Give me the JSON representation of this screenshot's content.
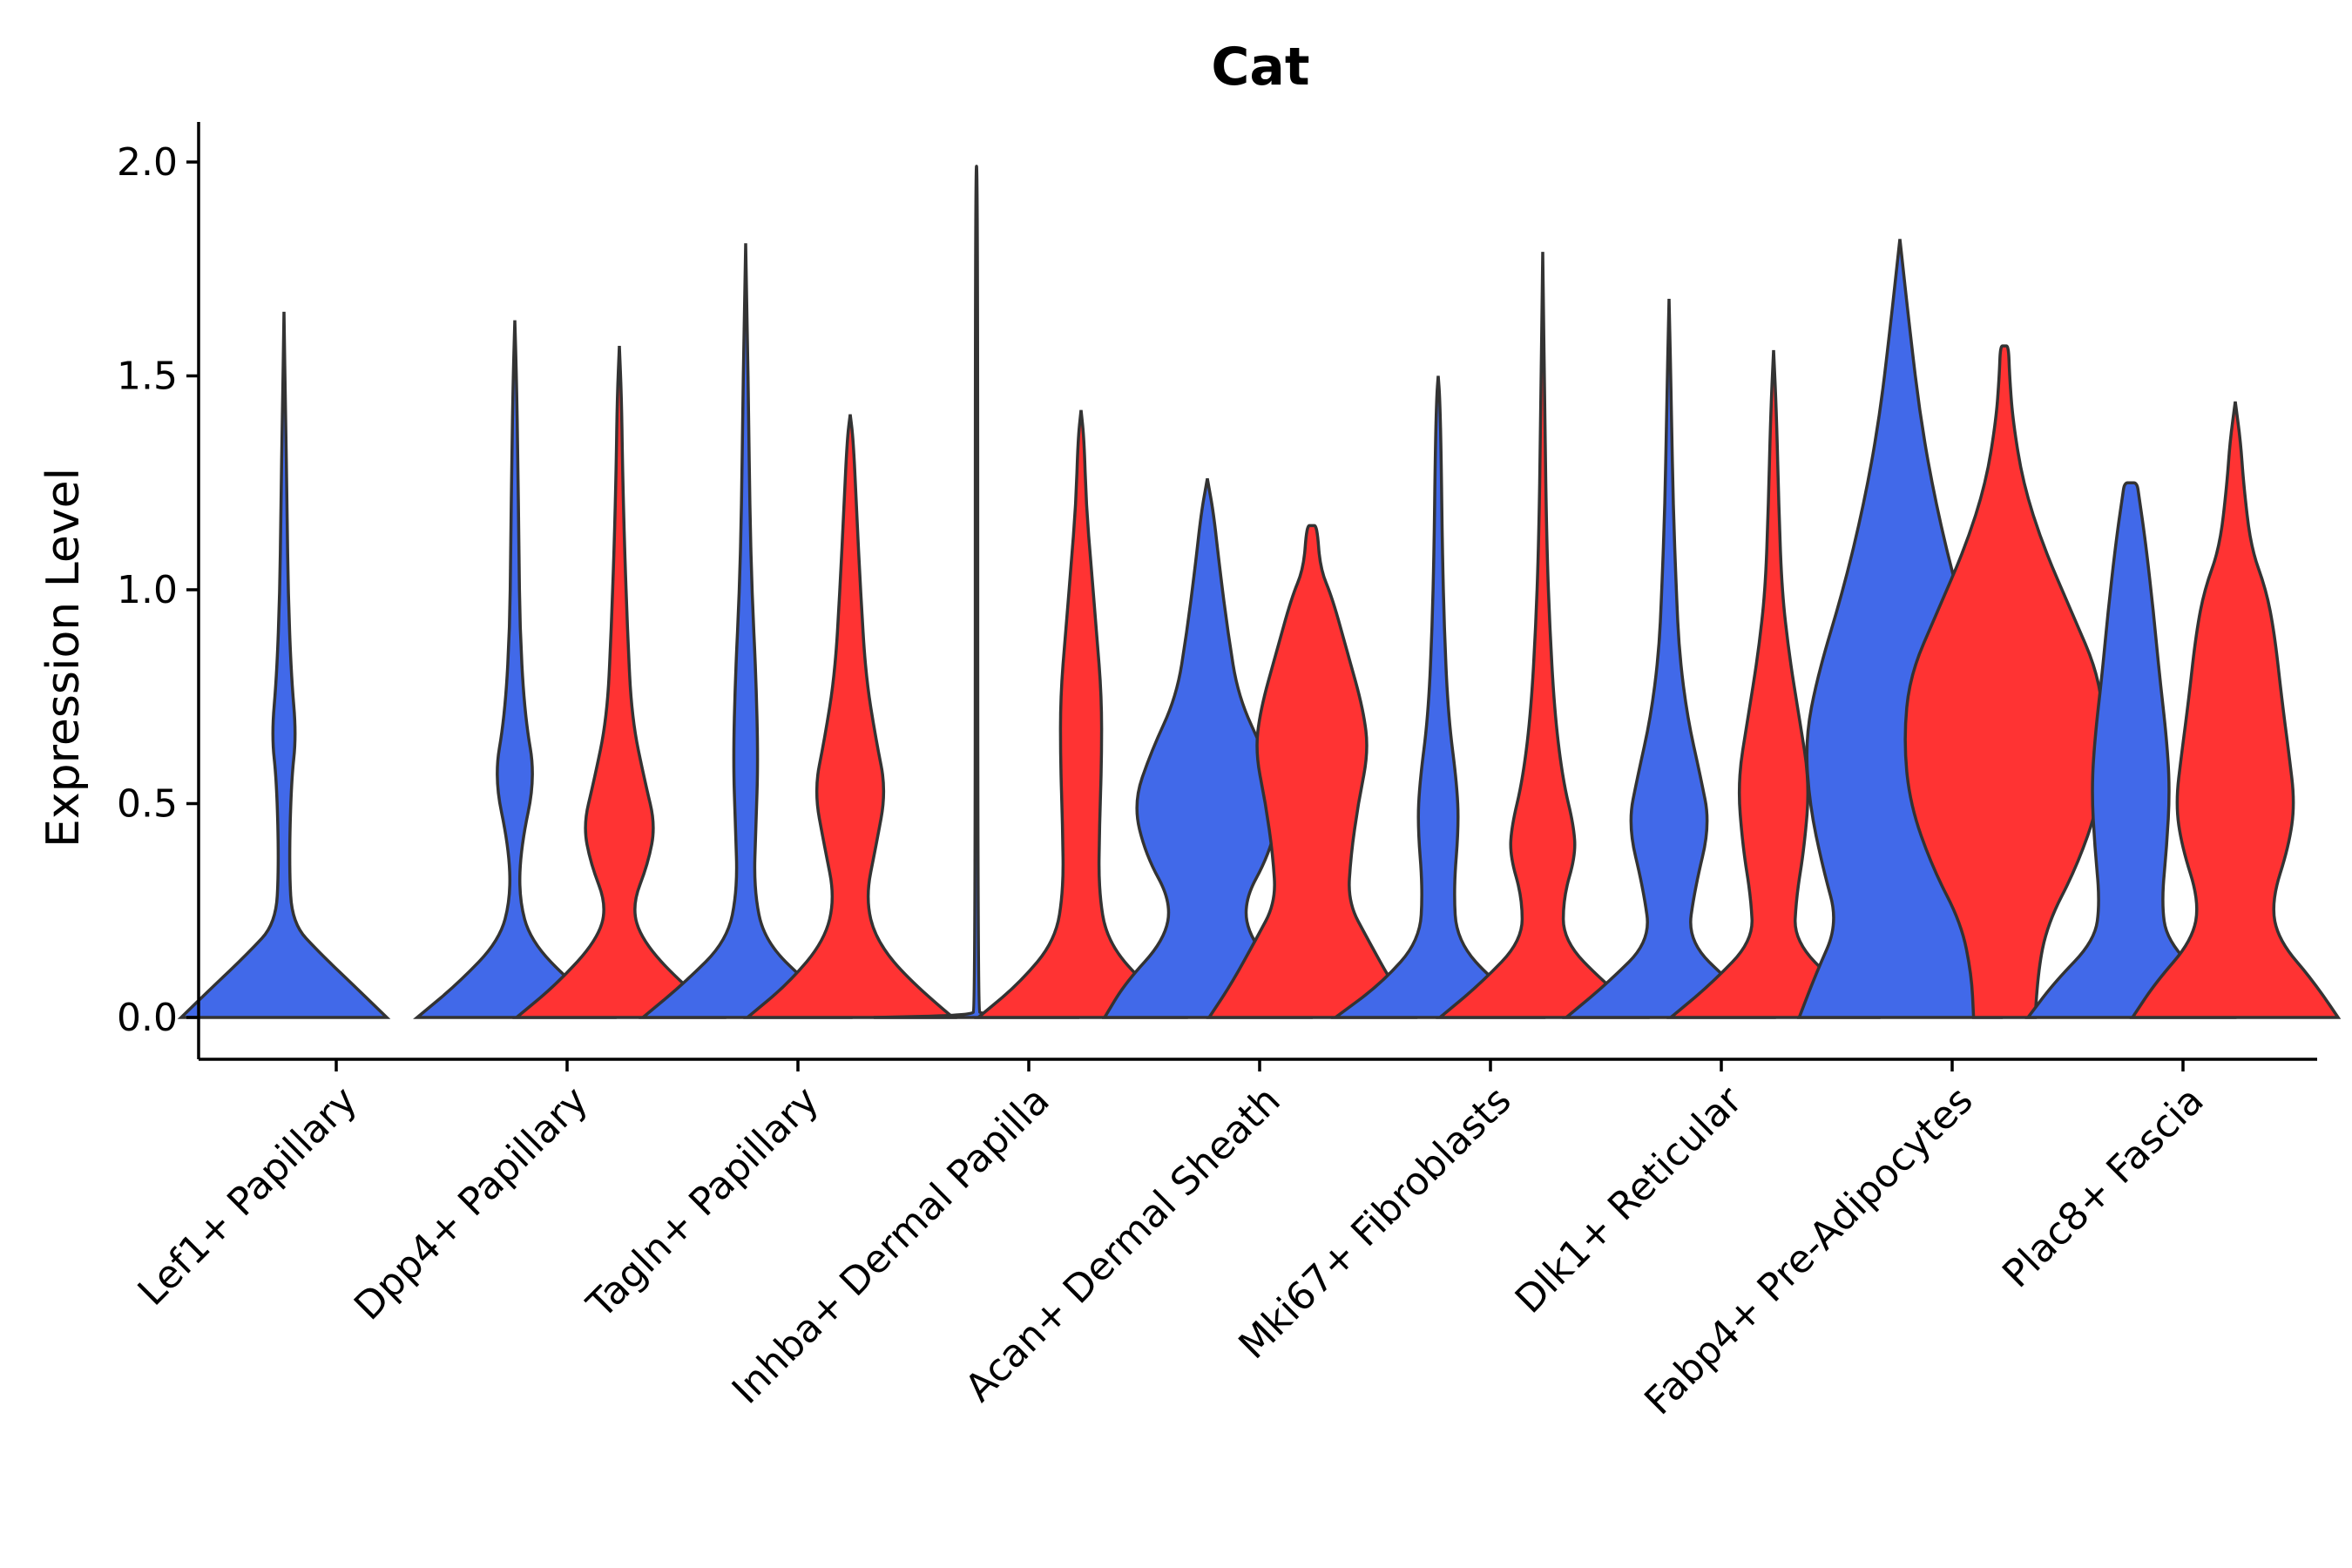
{
  "chart_data": {
    "type": "violin",
    "title": "Cat",
    "xlabel": "",
    "ylabel": "Expression Level",
    "ylim": [
      -0.1,
      2.1
    ],
    "yticks": [
      0.0,
      0.5,
      1.0,
      1.5,
      2.0
    ],
    "ytick_labels": [
      "0.0",
      "0.5",
      "1.0",
      "1.5",
      "2.0"
    ],
    "colors": {
      "blue": "#4169E9",
      "red": "#FF3333",
      "outline": "#333333"
    },
    "categories": [
      "Lef1+ Papillary",
      "Dpp4+ Papillary",
      "Tagln+ Papillary",
      "Inhba+ Dermal Papilla",
      "Acan+ Dermal Sheath",
      "Mki67+ Fibroblasts",
      "Dlk1+ Reticular",
      "Fabp4+ Pre-Adipocytes",
      "Plac8+ Fascia"
    ],
    "violins": [
      {
        "category": "Lef1+ Papillary",
        "group": "blue",
        "max": 1.65,
        "profile": [
          [
            0,
            1.0
          ],
          [
            0.07,
            0.7
          ],
          [
            0.15,
            0.35
          ],
          [
            0.22,
            0.08
          ],
          [
            0.35,
            0.05
          ],
          [
            0.55,
            0.07
          ],
          [
            0.66,
            0.12
          ],
          [
            0.8,
            0.07
          ],
          [
            1.0,
            0.04
          ],
          [
            1.2,
            0.03
          ],
          [
            1.4,
            0.015
          ],
          [
            1.65,
            0
          ]
        ]
      },
      {
        "category": "Dpp4+ Papillary",
        "group": "blue",
        "max": 1.63,
        "profile": [
          [
            0,
            0.95
          ],
          [
            0.08,
            0.55
          ],
          [
            0.18,
            0.15
          ],
          [
            0.28,
            0.04
          ],
          [
            0.4,
            0.06
          ],
          [
            0.56,
            0.2
          ],
          [
            0.7,
            0.1
          ],
          [
            0.9,
            0.05
          ],
          [
            1.1,
            0.04
          ],
          [
            1.3,
            0.03
          ],
          [
            1.5,
            0.015
          ],
          [
            1.63,
            0
          ]
        ]
      },
      {
        "category": "Dpp4+ Papillary",
        "group": "red",
        "max": 1.57,
        "profile": [
          [
            0,
            1.0
          ],
          [
            0.08,
            0.6
          ],
          [
            0.18,
            0.22
          ],
          [
            0.26,
            0.12
          ],
          [
            0.36,
            0.28
          ],
          [
            0.45,
            0.35
          ],
          [
            0.55,
            0.25
          ],
          [
            0.7,
            0.12
          ],
          [
            0.9,
            0.08
          ],
          [
            1.1,
            0.05
          ],
          [
            1.3,
            0.03
          ],
          [
            1.45,
            0.02
          ],
          [
            1.57,
            0
          ]
        ]
      },
      {
        "category": "Tagln+ Papillary",
        "group": "blue",
        "max": 1.81,
        "profile": [
          [
            0,
            1.0
          ],
          [
            0.08,
            0.6
          ],
          [
            0.18,
            0.18
          ],
          [
            0.3,
            0.08
          ],
          [
            0.45,
            0.1
          ],
          [
            0.6,
            0.12
          ],
          [
            0.8,
            0.1
          ],
          [
            1.0,
            0.06
          ],
          [
            1.2,
            0.04
          ],
          [
            1.4,
            0.03
          ],
          [
            1.6,
            0.015
          ],
          [
            1.81,
            0
          ]
        ]
      },
      {
        "category": "Tagln+ Papillary",
        "group": "red",
        "max": 1.41,
        "profile": [
          [
            0,
            1.0
          ],
          [
            0.08,
            0.6
          ],
          [
            0.18,
            0.25
          ],
          [
            0.28,
            0.15
          ],
          [
            0.4,
            0.25
          ],
          [
            0.53,
            0.35
          ],
          [
            0.65,
            0.25
          ],
          [
            0.8,
            0.15
          ],
          [
            1.0,
            0.1
          ],
          [
            1.2,
            0.06
          ],
          [
            1.35,
            0.03
          ],
          [
            1.41,
            0
          ]
        ]
      },
      {
        "category": "Inhba+ Dermal Papilla",
        "group": "blue",
        "max": 1.99,
        "profile": [
          [
            0,
            1.0
          ],
          [
            0.005,
            0.05
          ],
          [
            0.02,
            0.012
          ],
          [
            1.99,
            0.012
          ]
        ]
      },
      {
        "category": "Inhba+ Dermal Papilla",
        "group": "red",
        "max": 1.42,
        "profile": [
          [
            0,
            1.0
          ],
          [
            0.08,
            0.6
          ],
          [
            0.18,
            0.25
          ],
          [
            0.3,
            0.17
          ],
          [
            0.45,
            0.18
          ],
          [
            0.6,
            0.2
          ],
          [
            0.75,
            0.2
          ],
          [
            0.9,
            0.15
          ],
          [
            1.05,
            0.1
          ],
          [
            1.2,
            0.05
          ],
          [
            1.35,
            0.03
          ],
          [
            1.42,
            0
          ]
        ]
      },
      {
        "category": "Acan+ Dermal Sheath",
        "group": "blue",
        "max": 1.26,
        "profile": [
          [
            0,
            1.0
          ],
          [
            0.08,
            0.8
          ],
          [
            0.18,
            0.42
          ],
          [
            0.27,
            0.35
          ],
          [
            0.38,
            0.6
          ],
          [
            0.5,
            0.72
          ],
          [
            0.62,
            0.55
          ],
          [
            0.75,
            0.3
          ],
          [
            0.9,
            0.2
          ],
          [
            1.05,
            0.12
          ],
          [
            1.18,
            0.06
          ],
          [
            1.26,
            0
          ]
        ]
      },
      {
        "category": "Acan+ Dermal Sheath",
        "group": "red",
        "max": 1.15,
        "profile": [
          [
            0,
            1.0
          ],
          [
            0.08,
            0.78
          ],
          [
            0.18,
            0.55
          ],
          [
            0.27,
            0.35
          ],
          [
            0.38,
            0.38
          ],
          [
            0.5,
            0.45
          ],
          [
            0.62,
            0.55
          ],
          [
            0.72,
            0.5
          ],
          [
            0.85,
            0.35
          ],
          [
            0.98,
            0.2
          ],
          [
            1.05,
            0.08
          ],
          [
            1.15,
            0.05
          ],
          [
            1.15,
            0
          ]
        ]
      },
      {
        "category": "Mki67+ Fibroblasts",
        "group": "blue",
        "max": 1.5,
        "profile": [
          [
            0,
            1.0
          ],
          [
            0.08,
            0.55
          ],
          [
            0.18,
            0.18
          ],
          [
            0.3,
            0.15
          ],
          [
            0.45,
            0.2
          ],
          [
            0.55,
            0.18
          ],
          [
            0.7,
            0.1
          ],
          [
            0.9,
            0.06
          ],
          [
            1.1,
            0.04
          ],
          [
            1.3,
            0.03
          ],
          [
            1.45,
            0.015
          ],
          [
            1.5,
            0
          ]
        ]
      },
      {
        "category": "Mki67+ Fibroblasts",
        "group": "red",
        "max": 1.79,
        "profile": [
          [
            0,
            1.0
          ],
          [
            0.08,
            0.6
          ],
          [
            0.18,
            0.2
          ],
          [
            0.28,
            0.2
          ],
          [
            0.38,
            0.32
          ],
          [
            0.45,
            0.3
          ],
          [
            0.55,
            0.2
          ],
          [
            0.7,
            0.12
          ],
          [
            0.9,
            0.07
          ],
          [
            1.1,
            0.04
          ],
          [
            1.4,
            0.02
          ],
          [
            1.79,
            0
          ]
        ]
      },
      {
        "category": "Dlk1+ Reticular",
        "group": "blue",
        "max": 1.68,
        "profile": [
          [
            0,
            1.0
          ],
          [
            0.08,
            0.6
          ],
          [
            0.18,
            0.18
          ],
          [
            0.3,
            0.25
          ],
          [
            0.45,
            0.4
          ],
          [
            0.57,
            0.3
          ],
          [
            0.7,
            0.18
          ],
          [
            0.85,
            0.1
          ],
          [
            1.0,
            0.07
          ],
          [
            1.2,
            0.04
          ],
          [
            1.4,
            0.025
          ],
          [
            1.68,
            0
          ]
        ]
      },
      {
        "category": "Dlk1+ Reticular",
        "group": "red",
        "max": 1.56,
        "profile": [
          [
            0,
            1.0
          ],
          [
            0.08,
            0.6
          ],
          [
            0.18,
            0.2
          ],
          [
            0.28,
            0.22
          ],
          [
            0.4,
            0.3
          ],
          [
            0.55,
            0.35
          ],
          [
            0.7,
            0.25
          ],
          [
            0.85,
            0.15
          ],
          [
            1.0,
            0.08
          ],
          [
            1.2,
            0.05
          ],
          [
            1.4,
            0.03
          ],
          [
            1.56,
            0
          ]
        ]
      },
      {
        "category": "Fabp4+ Pre-Adipocytes",
        "group": "blue",
        "max": 1.82,
        "profile": [
          [
            0,
            0.98
          ],
          [
            0.1,
            0.82
          ],
          [
            0.22,
            0.6
          ],
          [
            0.35,
            0.75
          ],
          [
            0.5,
            0.88
          ],
          [
            0.65,
            0.92
          ],
          [
            0.8,
            0.8
          ],
          [
            1.0,
            0.55
          ],
          [
            1.2,
            0.35
          ],
          [
            1.4,
            0.2
          ],
          [
            1.6,
            0.1
          ],
          [
            1.82,
            0
          ]
        ]
      },
      {
        "category": "Fabp4+ Pre-Adipocytes",
        "group": "red",
        "max": 1.57,
        "profile": [
          [
            0,
            0.3
          ],
          [
            0.1,
            0.32
          ],
          [
            0.22,
            0.42
          ],
          [
            0.35,
            0.7
          ],
          [
            0.5,
            0.92
          ],
          [
            0.65,
            0.98
          ],
          [
            0.8,
            0.92
          ],
          [
            0.95,
            0.65
          ],
          [
            1.1,
            0.38
          ],
          [
            1.25,
            0.18
          ],
          [
            1.4,
            0.08
          ],
          [
            1.5,
            0.05
          ],
          [
            1.57,
            0.04
          ],
          [
            1.57,
            0
          ]
        ]
      },
      {
        "category": "Plac8+ Fascia",
        "group": "blue",
        "max": 1.25,
        "profile": [
          [
            0,
            1.0
          ],
          [
            0.08,
            0.75
          ],
          [
            0.18,
            0.35
          ],
          [
            0.27,
            0.3
          ],
          [
            0.4,
            0.35
          ],
          [
            0.53,
            0.38
          ],
          [
            0.65,
            0.35
          ],
          [
            0.8,
            0.28
          ],
          [
            0.95,
            0.22
          ],
          [
            1.1,
            0.15
          ],
          [
            1.22,
            0.08
          ],
          [
            1.25,
            0.06
          ],
          [
            1.25,
            0
          ]
        ]
      },
      {
        "category": "Plac8+ Fascia",
        "group": "red",
        "max": 1.44,
        "profile": [
          [
            0,
            1.0
          ],
          [
            0.08,
            0.78
          ],
          [
            0.18,
            0.42
          ],
          [
            0.27,
            0.35
          ],
          [
            0.4,
            0.52
          ],
          [
            0.5,
            0.58
          ],
          [
            0.62,
            0.52
          ],
          [
            0.75,
            0.45
          ],
          [
            0.9,
            0.38
          ],
          [
            1.0,
            0.3
          ],
          [
            1.1,
            0.15
          ],
          [
            1.25,
            0.08
          ],
          [
            1.35,
            0.05
          ],
          [
            1.44,
            0
          ]
        ]
      }
    ]
  }
}
